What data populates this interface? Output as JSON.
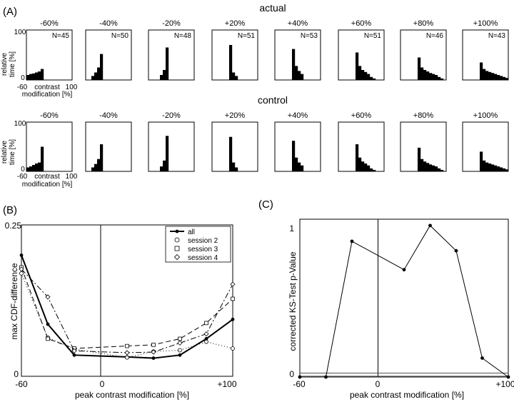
{
  "panel_labels": {
    "a": "(A)",
    "b": "(B)",
    "c": "(C)"
  },
  "row_titles": {
    "actual": "actual",
    "control": "control"
  },
  "hist_axis": {
    "ylabel_line1": "relative",
    "ylabel_line2": "time [%]",
    "y_top": "100",
    "y_bottom": "0",
    "x_left": "-60",
    "x_mid": "contrast",
    "x_right": "100",
    "x_line2": "modification [%]"
  },
  "chart_data": [
    {
      "type": "bar",
      "group": "actual",
      "ylim": [
        0,
        100
      ],
      "xlim": [
        -60,
        100
      ],
      "panels": [
        {
          "title": "-60%",
          "n_label": "N=45",
          "values": [
            10,
            12,
            13,
            15,
            17,
            22,
            0,
            0,
            0,
            0,
            0,
            0,
            0,
            0,
            0,
            0
          ]
        },
        {
          "title": "-40%",
          "n_label": "N=50",
          "values": [
            0,
            0,
            8,
            15,
            25,
            52,
            0,
            0,
            0,
            0,
            0,
            0,
            0,
            0,
            0,
            0
          ]
        },
        {
          "title": "-20%",
          "n_label": "N=48",
          "values": [
            0,
            0,
            0,
            0,
            10,
            20,
            65,
            0,
            0,
            0,
            0,
            0,
            0,
            0,
            0,
            0
          ]
        },
        {
          "title": "+20%",
          "n_label": "N=51",
          "values": [
            0,
            0,
            0,
            0,
            0,
            0,
            70,
            15,
            8,
            0,
            0,
            0,
            0,
            0,
            0,
            0
          ]
        },
        {
          "title": "+40%",
          "n_label": "N=53",
          "values": [
            0,
            0,
            0,
            0,
            0,
            0,
            62,
            28,
            18,
            12,
            0,
            0,
            0,
            0,
            0,
            0
          ]
        },
        {
          "title": "+60%",
          "n_label": "N=51",
          "values": [
            0,
            0,
            0,
            0,
            0,
            0,
            55,
            28,
            20,
            16,
            12,
            6,
            3,
            0,
            0,
            0
          ]
        },
        {
          "title": "+80%",
          "n_label": "N=46",
          "values": [
            0,
            0,
            0,
            0,
            0,
            0,
            45,
            25,
            20,
            17,
            14,
            12,
            10,
            6,
            3,
            0
          ]
        },
        {
          "title": "+100%",
          "n_label": "N=43",
          "values": [
            0,
            0,
            0,
            0,
            0,
            0,
            35,
            22,
            18,
            16,
            14,
            12,
            10,
            8,
            6,
            4
          ]
        }
      ]
    },
    {
      "type": "bar",
      "group": "control",
      "ylim": [
        0,
        100
      ],
      "xlim": [
        -60,
        100
      ],
      "panels": [
        {
          "title": "-60%",
          "values": [
            8,
            10,
            13,
            16,
            18,
            50,
            0,
            0,
            0,
            0,
            0,
            0,
            0,
            0,
            0,
            0
          ]
        },
        {
          "title": "-40%",
          "values": [
            0,
            0,
            8,
            15,
            25,
            55,
            0,
            0,
            0,
            0,
            0,
            0,
            0,
            0,
            0,
            0
          ]
        },
        {
          "title": "-20%",
          "values": [
            0,
            0,
            0,
            0,
            10,
            22,
            72,
            0,
            0,
            0,
            0,
            0,
            0,
            0,
            0,
            0
          ]
        },
        {
          "title": "+20%",
          "values": [
            0,
            0,
            0,
            0,
            0,
            0,
            70,
            18,
            8,
            0,
            0,
            0,
            0,
            0,
            0,
            0
          ]
        },
        {
          "title": "+40%",
          "values": [
            0,
            0,
            0,
            0,
            0,
            0,
            62,
            28,
            18,
            12,
            0,
            0,
            0,
            0,
            0,
            0
          ]
        },
        {
          "title": "+60%",
          "values": [
            0,
            0,
            0,
            0,
            0,
            0,
            55,
            28,
            20,
            16,
            12,
            6,
            3,
            0,
            0,
            0
          ]
        },
        {
          "title": "+80%",
          "values": [
            0,
            0,
            0,
            0,
            0,
            0,
            48,
            25,
            20,
            17,
            14,
            12,
            10,
            6,
            3,
            0
          ]
        },
        {
          "title": "+100%",
          "values": [
            0,
            0,
            0,
            0,
            0,
            0,
            40,
            22,
            18,
            16,
            14,
            12,
            10,
            8,
            6,
            4
          ]
        }
      ]
    },
    {
      "type": "line",
      "panel": "B",
      "xlabel": "peak contrast modification [%]",
      "ylabel": "max CDF-difference",
      "xlim": [
        -60,
        100
      ],
      "ylim": [
        0,
        0.25
      ],
      "x_ticks": [
        "-60",
        "0",
        "+100"
      ],
      "y_ticks": [
        "0.25",
        "0"
      ],
      "x": [
        -60,
        -40,
        -20,
        20,
        40,
        60,
        80,
        100
      ],
      "series": [
        {
          "name": "all",
          "values": [
            0.2,
            0.086,
            0.035,
            0.032,
            0.03,
            0.035,
            0.062,
            0.094
          ]
        },
        {
          "name": "session 2",
          "values": [
            0.17,
            0.064,
            0.045,
            0.031,
            0.041,
            0.043,
            0.057,
            0.046
          ]
        },
        {
          "name": "session 3",
          "values": [
            0.18,
            0.062,
            0.046,
            0.05,
            0.052,
            0.062,
            0.088,
            0.128
          ]
        },
        {
          "name": "session 4",
          "values": [
            0.177,
            0.131,
            0.042,
            0.039,
            0.04,
            0.055,
            0.07,
            0.152
          ]
        }
      ],
      "legend_position": "top-right"
    },
    {
      "type": "line",
      "panel": "C",
      "xlabel": "peak contrast modification [%]",
      "ylabel": "corrected KS-Test  p-Value",
      "xlim": [
        -60,
        100
      ],
      "ylim": [
        0,
        1
      ],
      "x_ticks": [
        "-60",
        "0",
        "+100"
      ],
      "y_ticks": [
        "1",
        "0"
      ],
      "x": [
        -60,
        -40,
        -20,
        20,
        40,
        60,
        80,
        100
      ],
      "series": [
        {
          "values": [
            0,
            0,
            0.86,
            0.68,
            0.96,
            0.8,
            0.12,
            0
          ]
        }
      ],
      "reference_lines": [
        0.025
      ]
    }
  ]
}
